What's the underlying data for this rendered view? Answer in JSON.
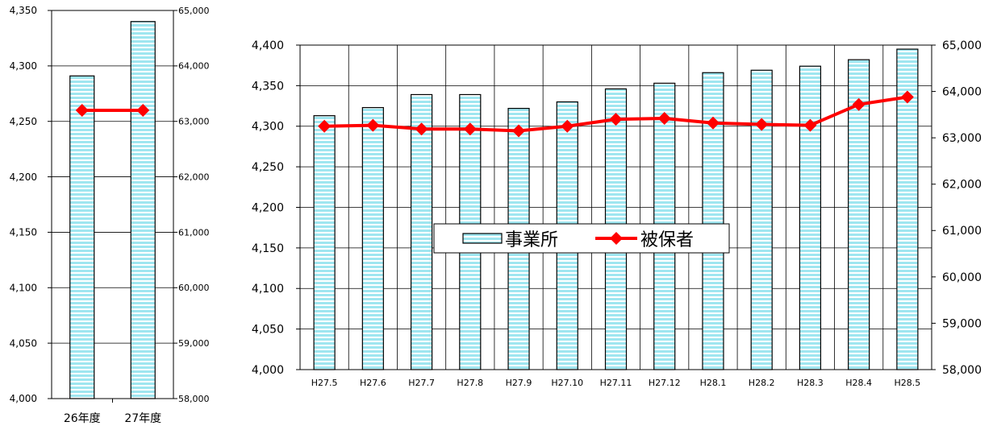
{
  "colors": {
    "bar_fill": "#9fe6f0",
    "bar_stripe": "#ffffff",
    "bar_edge": "#000000",
    "line": "#ff0000",
    "grid": "#000000"
  },
  "chart_data": [
    {
      "type": "bar+line",
      "categories": [
        "26年度",
        "27年度"
      ],
      "series": [
        {
          "name": "事業所",
          "kind": "bar",
          "axis": "left",
          "values": [
            4291,
            4340
          ]
        },
        {
          "name": "被保者",
          "kind": "line",
          "axis": "right",
          "values": [
            63200,
            63200
          ]
        }
      ],
      "left_axis": {
        "ylim": [
          4000,
          4350
        ],
        "ticks": [
          "4,000",
          "4,050",
          "4,100",
          "4,150",
          "4,200",
          "4,250",
          "4,300",
          "4,350"
        ]
      },
      "right_axis": {
        "ylim": [
          58000,
          65000
        ],
        "ticks": [
          "58,000",
          "59,000",
          "60,000",
          "61,000",
          "62,000",
          "63,000",
          "64,000",
          "65,000"
        ]
      },
      "grid": true
    },
    {
      "type": "bar+line",
      "categories": [
        "H27.5",
        "H27.6",
        "H27.7",
        "H27.8",
        "H27.9",
        "H27.10",
        "H27.11",
        "H27.12",
        "H28.1",
        "H28.2",
        "H28.3",
        "H28.4",
        "H28.5"
      ],
      "series": [
        {
          "name": "事業所",
          "kind": "bar",
          "axis": "left",
          "values": [
            4313,
            4323,
            4339,
            4339,
            4322,
            4330,
            4346,
            4353,
            4366,
            4369,
            4374,
            4382,
            4395
          ]
        },
        {
          "name": "被保者",
          "kind": "line",
          "axis": "right",
          "values": [
            63250,
            63270,
            63190,
            63190,
            63150,
            63250,
            63400,
            63420,
            63320,
            63290,
            63270,
            63720,
            63880
          ]
        }
      ],
      "left_axis": {
        "ylim": [
          4000,
          4400
        ],
        "ticks": [
          "4,000",
          "4,050",
          "4,100",
          "4,150",
          "4,200",
          "4,250",
          "4,300",
          "4,350",
          "4,400"
        ]
      },
      "right_axis": {
        "ylim": [
          58000,
          65000
        ],
        "ticks": [
          "58,000",
          "59,000",
          "60,000",
          "61,000",
          "62,000",
          "63,000",
          "64,000",
          "65,000"
        ]
      },
      "legend": {
        "placement": "center",
        "entries": [
          "事業所",
          "被保者"
        ]
      },
      "grid": true
    }
  ]
}
